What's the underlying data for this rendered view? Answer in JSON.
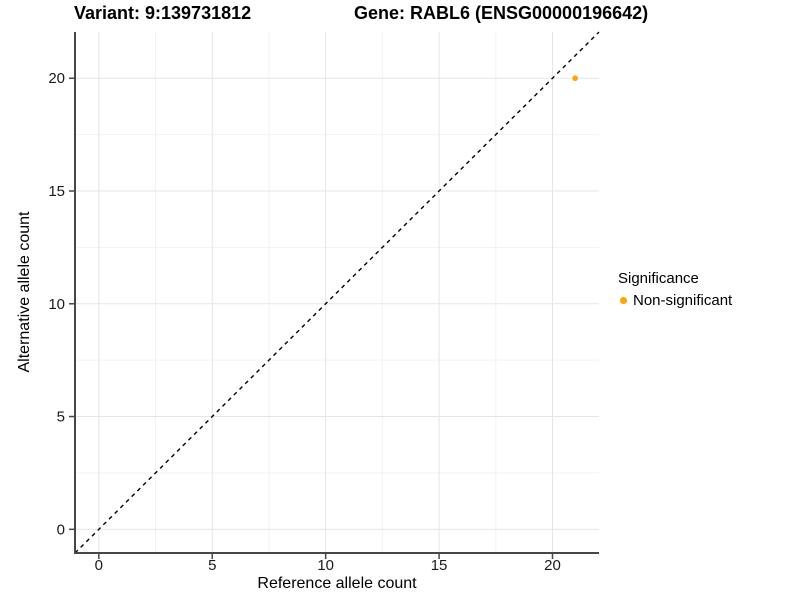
{
  "chart_data": {
    "type": "scatter",
    "title_left": "Variant: 9:139731812",
    "title_right": "Gene: RABL6 (ENSG00000196642)",
    "xlabel": "Reference allele count",
    "ylabel": "Alternative allele count",
    "xlim": [
      -1.05,
      22.05
    ],
    "ylim": [
      -1.05,
      22.05
    ],
    "x_ticks": [
      0,
      5,
      10,
      15,
      20
    ],
    "y_ticks": [
      0,
      5,
      10,
      15,
      20
    ],
    "x_minor_ticks": [
      2.5,
      7.5,
      12.5,
      17.5
    ],
    "y_minor_ticks": [
      2.5,
      7.5,
      12.5,
      17.5
    ],
    "grid": "major-and-minor",
    "reference_line": {
      "slope": 1,
      "intercept": 0,
      "style": "dashed"
    },
    "series": [
      {
        "name": "Non-significant",
        "color": "#FFA500",
        "points": [
          [
            21,
            20
          ]
        ]
      }
    ],
    "legend": {
      "title": "Significance",
      "position": "right"
    },
    "colors": {
      "point": "#FFA500",
      "axis_line": "#474747",
      "grid_major": "#e5e5e5",
      "grid_minor": "#f2f2f2",
      "reference_line": "#000000",
      "text": "#1a1a1a"
    }
  }
}
